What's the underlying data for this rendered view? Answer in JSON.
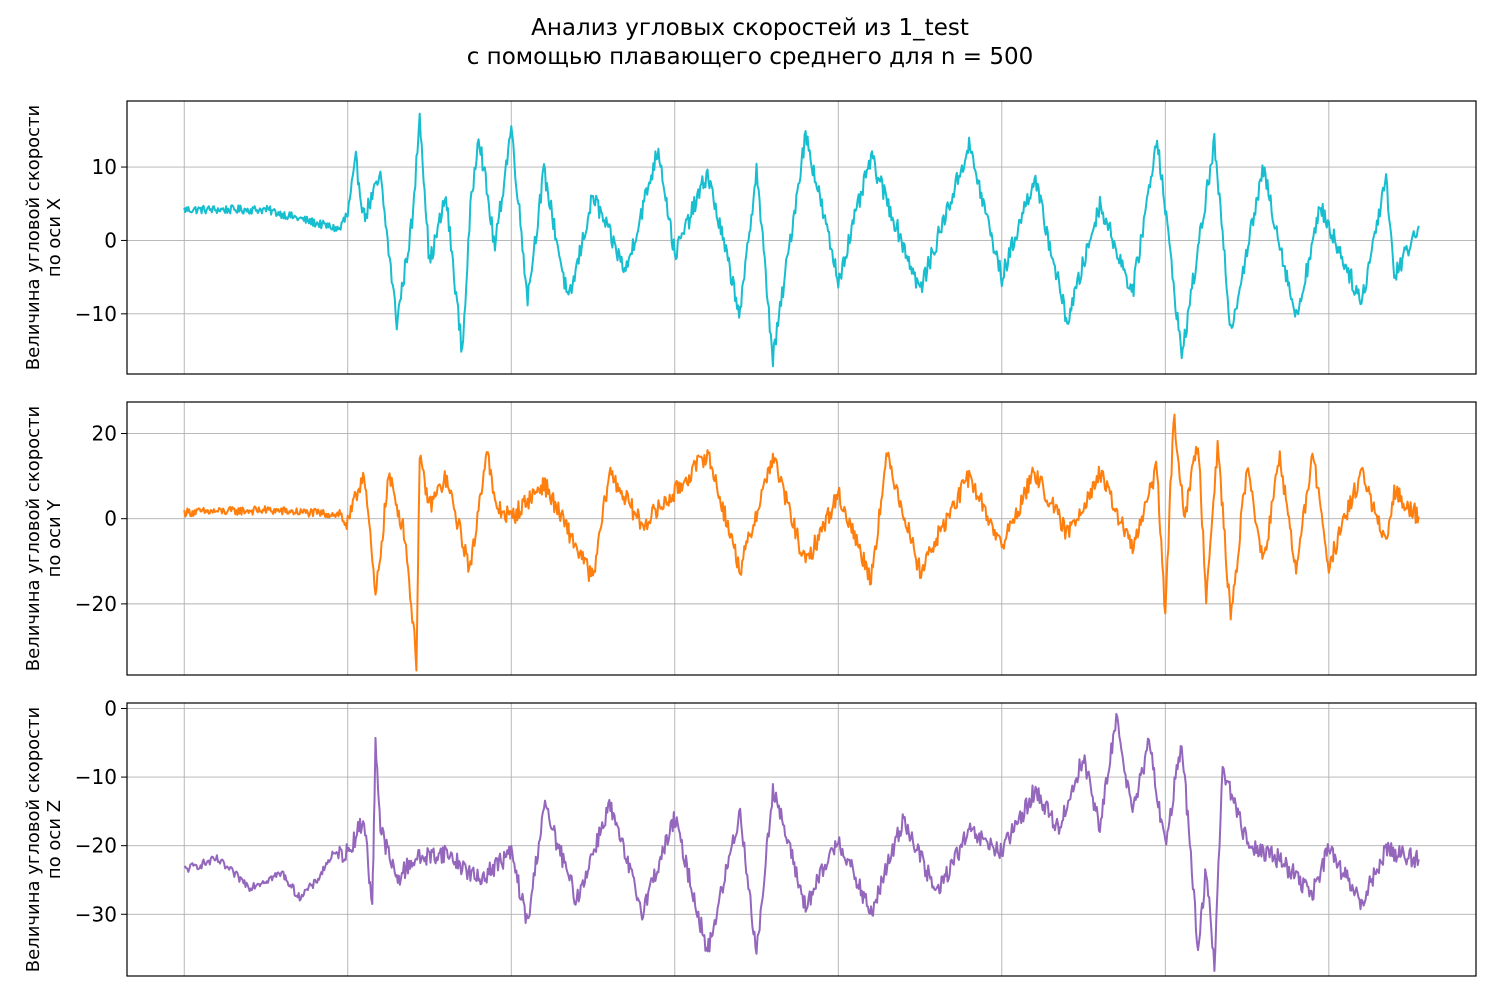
{
  "figure": {
    "title_line1": "Анализ угловых скоростей из 1_test",
    "title_line2": "с помощью плавающего среднего для n = 500"
  },
  "chart_data": [
    {
      "type": "line",
      "ylabel_line1": "Величина угловой скорости",
      "ylabel_line2": "по оси X",
      "color": "#17becf",
      "ylim": [
        -18.2,
        19.0
      ],
      "yticks": [
        10,
        0,
        -10
      ],
      "ytick_labels": [
        "10",
        "0",
        "−10"
      ],
      "xlim": [
        -0.35,
        7.9
      ],
      "xticks": [
        0,
        1,
        2,
        3,
        4,
        5,
        6,
        7
      ],
      "grid": true,
      "x": [
        0.0,
        0.5,
        0.95,
        1.0,
        1.05,
        1.1,
        1.2,
        1.3,
        1.4,
        1.44,
        1.5,
        1.6,
        1.7,
        1.75,
        1.8,
        1.9,
        2.0,
        2.1,
        2.2,
        2.35,
        2.5,
        2.7,
        2.9,
        3.0,
        3.2,
        3.4,
        3.5,
        3.6,
        3.8,
        4.0,
        4.2,
        4.5,
        4.8,
        5.0,
        5.2,
        5.4,
        5.6,
        5.8,
        5.95,
        6.1,
        6.3,
        6.4,
        6.6,
        6.8,
        6.95,
        7.2,
        7.35,
        7.4,
        7.55
      ],
      "y": [
        4.2,
        4.2,
        1.5,
        3.5,
        10.8,
        3.2,
        8.6,
        -11.2,
        3.5,
        17.4,
        -3.2,
        6.0,
        -15.3,
        4.0,
        14.8,
        -1.1,
        15.5,
        -7.8,
        9.4,
        -8.5,
        6.1,
        -4.3,
        12.6,
        -2.0,
        9.2,
        -10.1,
        9.8,
        -16.2,
        14.5,
        -5.5,
        11.3,
        -6.8,
        12.9,
        -5.1,
        8.6,
        -11.1,
        5.0,
        -7.2,
        14.2,
        -15.8,
        13.3,
        -12.2,
        9.7,
        -10.6,
        4.6,
        -8.5,
        8.9,
        -4.9,
        2.0
      ]
    },
    {
      "type": "line",
      "ylabel_line1": "Величина угловой скорости",
      "ylabel_line2": "по оси Y",
      "color": "#ff7f0e",
      "ylim": [
        -36.7,
        27.4
      ],
      "yticks": [
        20,
        0,
        -20
      ],
      "ytick_labels": [
        "20",
        "0",
        "−20"
      ],
      "xlim": [
        -0.35,
        7.9
      ],
      "xticks": [
        0,
        1,
        2,
        3,
        4,
        5,
        6,
        7
      ],
      "grid": true,
      "x": [
        0.0,
        0.5,
        0.95,
        1.0,
        1.1,
        1.17,
        1.25,
        1.35,
        1.42,
        1.44,
        1.5,
        1.6,
        1.75,
        1.85,
        1.9,
        2.0,
        2.2,
        2.5,
        2.6,
        2.8,
        3.0,
        3.2,
        3.4,
        3.6,
        3.8,
        4.0,
        4.2,
        4.3,
        4.5,
        4.8,
        5.0,
        5.2,
        5.4,
        5.6,
        5.8,
        5.95,
        6.0,
        6.05,
        6.12,
        6.2,
        6.25,
        6.32,
        6.4,
        6.5,
        6.6,
        6.7,
        6.8,
        6.9,
        7.0,
        7.2,
        7.35,
        7.4,
        7.55
      ],
      "y": [
        1.5,
        2.0,
        1.0,
        -1.5,
        11.5,
        -18.8,
        10.2,
        -3.8,
        -33.6,
        13.7,
        3.0,
        9.5,
        -12.1,
        16.8,
        3.1,
        0.2,
        8.3,
        -14.3,
        11.0,
        -1.5,
        6.1,
        15.5,
        -12.0,
        14.8,
        -10.8,
        5.8,
        -14.0,
        15.0,
        -12.3,
        10.0,
        -6.5,
        11.0,
        -3.6,
        10.6,
        -7.2,
        12.0,
        -23.6,
        24.5,
        0.5,
        18.5,
        -17.7,
        17.4,
        -23.8,
        12.4,
        -10.6,
        14.6,
        -12.6,
        15.4,
        -11.1,
        11.0,
        -6.8,
        6.5,
        0.5
      ]
    },
    {
      "type": "line",
      "ylabel_line1": "Величина угловой скорости",
      "ylabel_line2": "по оси Z",
      "color": "#9467bd",
      "ylim": [
        -39.0,
        0.8
      ],
      "yticks": [
        0,
        -10,
        -20,
        -30
      ],
      "ytick_labels": [
        "0",
        "−10",
        "−20",
        "−30"
      ],
      "xlim": [
        -0.35,
        7.9
      ],
      "xticks": [
        0,
        1,
        2,
        3,
        4,
        5,
        6,
        7
      ],
      "grid": true,
      "x": [
        0.0,
        0.2,
        0.4,
        0.6,
        0.7,
        0.8,
        0.9,
        1.0,
        1.1,
        1.15,
        1.17,
        1.2,
        1.3,
        1.4,
        1.6,
        1.8,
        2.0,
        2.1,
        2.2,
        2.4,
        2.6,
        2.8,
        3.0,
        3.2,
        3.4,
        3.5,
        3.6,
        3.8,
        4.0,
        4.2,
        4.4,
        4.6,
        4.8,
        5.0,
        5.2,
        5.35,
        5.5,
        5.6,
        5.7,
        5.8,
        5.9,
        6.0,
        6.1,
        6.2,
        6.25,
        6.3,
        6.35,
        6.5,
        6.7,
        6.9,
        7.0,
        7.2,
        7.35,
        7.55
      ],
      "y": [
        -23.5,
        -22.0,
        -26.0,
        -24.0,
        -27.5,
        -25.5,
        -21.5,
        -21.0,
        -16.0,
        -29.3,
        -4.3,
        -17.5,
        -25.0,
        -22.0,
        -21.0,
        -25.0,
        -21.0,
        -31.5,
        -14.0,
        -28.0,
        -14.0,
        -29.5,
        -16.0,
        -35.5,
        -15.0,
        -36.0,
        -11.5,
        -29.0,
        -19.0,
        -30.0,
        -16.0,
        -27.0,
        -18.0,
        -21.0,
        -12.0,
        -17.5,
        -7.0,
        -17.5,
        -1.2,
        -15.5,
        -5.0,
        -20.0,
        -4.5,
        -35.5,
        -23.0,
        -37.5,
        -8.5,
        -19.5,
        -22.0,
        -27.0,
        -20.5,
        -28.5,
        -20.5,
        -22.0
      ]
    }
  ]
}
